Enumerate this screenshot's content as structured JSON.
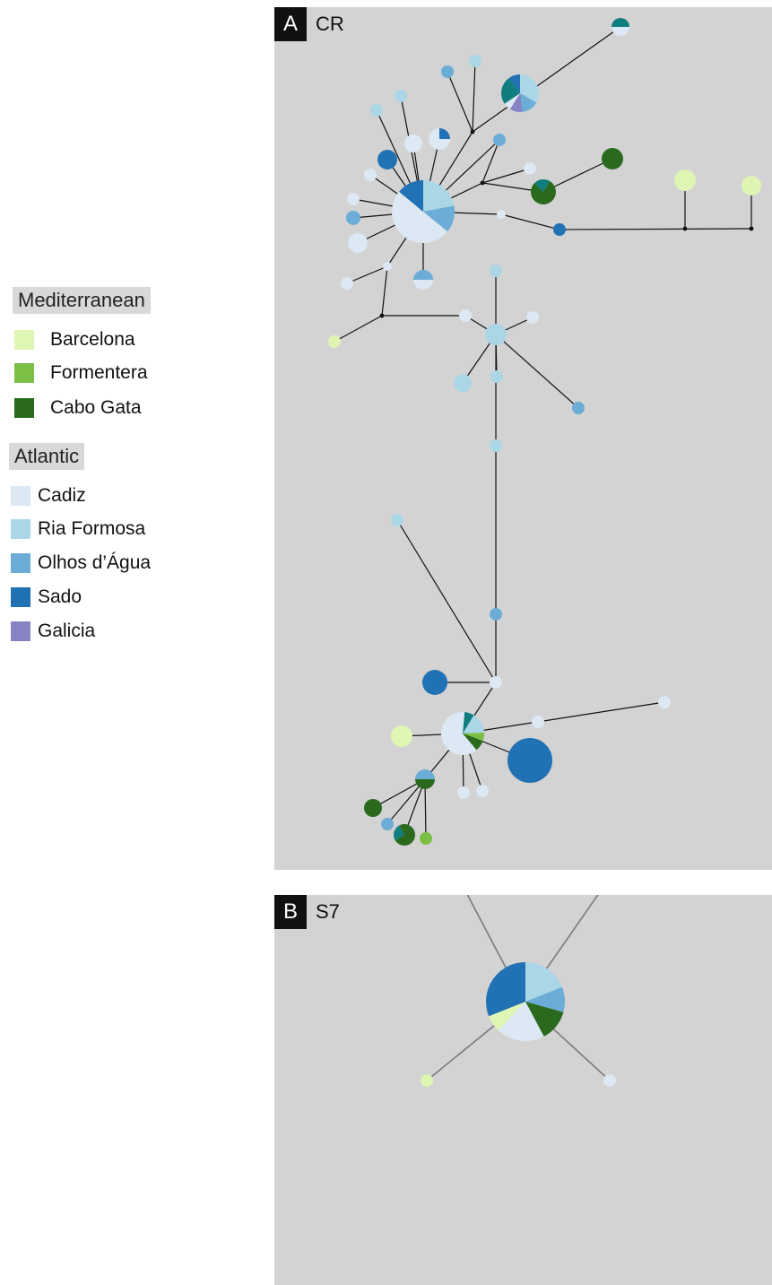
{
  "legend": {
    "mediterranean_title": "Mediterranean",
    "atlantic_title": "Atlantic",
    "mediterranean": [
      {
        "label": "Barcelona",
        "color": "#dff5b3"
      },
      {
        "label": "Formentera",
        "color": "#7bbf44"
      },
      {
        "label": "Cabo Gata",
        "color": "#2a6a1f"
      }
    ],
    "atlantic": [
      {
        "label": "Cadiz",
        "color": "#dce8f3"
      },
      {
        "label": "Ria Formosa",
        "color": "#aad6e6"
      },
      {
        "label": "Olhos d’Água",
        "color": "#6badd6"
      },
      {
        "label": "Sado",
        "color": "#2171b5"
      },
      {
        "label": "Galicia",
        "color": "#8683c4"
      }
    ]
  },
  "extra_colors": {
    "teal": "#107e7e"
  },
  "panel_a": {
    "letter": "A",
    "name": "CR"
  },
  "panel_b": {
    "letter": "B",
    "name": "S7"
  }
}
